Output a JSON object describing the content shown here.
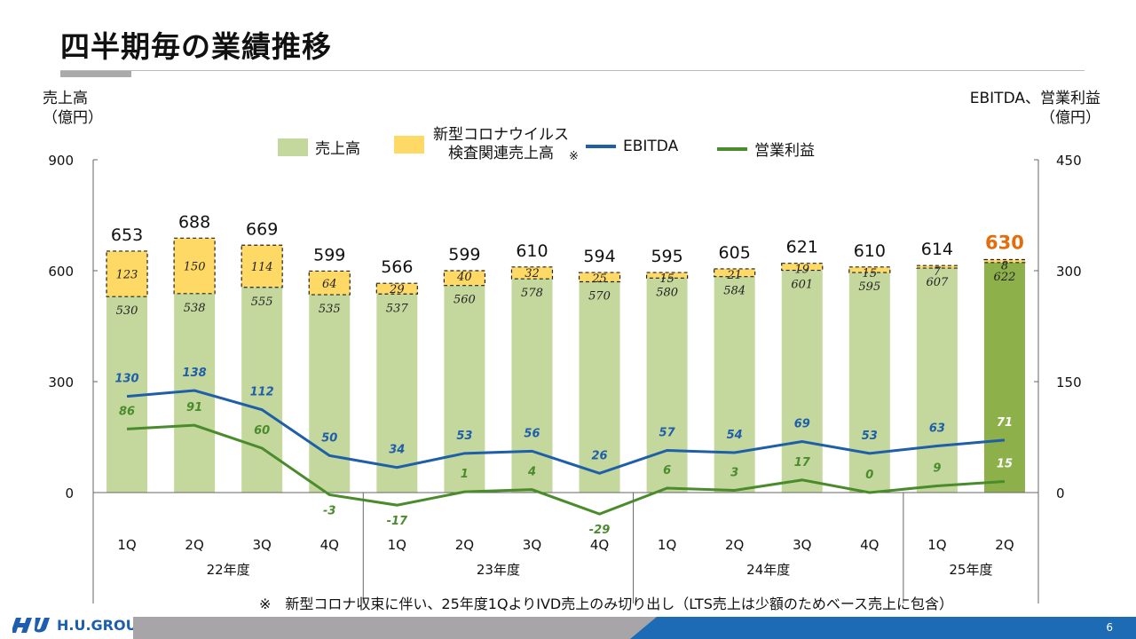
{
  "page": {
    "title": "四半期毎の業績推移",
    "note": "※　新型コロナ収束に伴い、25年度1QよりIVD売上のみ切り出し（LTS売上は少額のためベース売上に包含）",
    "page_number": "6",
    "logo_text": "H.U.GROUP"
  },
  "chart_data": {
    "type": "bar",
    "left_axis_title": [
      "売上高",
      "（億円）"
    ],
    "right_axis_title": [
      "EBITDA、営業利益",
      "（億円）"
    ],
    "left_ticks": [
      0,
      300,
      600,
      900
    ],
    "right_ticks": [
      0,
      150,
      300,
      450
    ],
    "ylim_left": [
      -300,
      900
    ],
    "ylim_right": [
      -150,
      450
    ],
    "categories": [
      "1Q",
      "2Q",
      "3Q",
      "4Q",
      "1Q",
      "2Q",
      "3Q",
      "4Q",
      "1Q",
      "2Q",
      "3Q",
      "4Q",
      "1Q",
      "2Q"
    ],
    "groups": [
      {
        "label": "22年度",
        "count": 4
      },
      {
        "label": "23年度",
        "count": 4
      },
      {
        "label": "24年度",
        "count": 4
      },
      {
        "label": "25年度",
        "count": 2
      }
    ],
    "series": [
      {
        "name": "売上高",
        "kind": "bar",
        "axis": "left",
        "color": "#c4d89e",
        "highlight_color": "#8db04a",
        "values": [
          530,
          538,
          555,
          535,
          537,
          560,
          578,
          570,
          580,
          584,
          601,
          595,
          607,
          622
        ]
      },
      {
        "name": "新型コロナウイルス検査関連売上高",
        "name_lines": [
          "新型コロナウイルス",
          "検査関連売上高"
        ],
        "name_mark": "※",
        "kind": "bar-stacked",
        "axis": "left",
        "color": "#ffd966",
        "values": [
          123,
          150,
          114,
          64,
          29,
          40,
          32,
          25,
          15,
          21,
          19,
          15,
          7,
          8
        ]
      },
      {
        "name": "EBITDA",
        "kind": "line",
        "axis": "right",
        "color": "#1f5ea8",
        "values": [
          130,
          138,
          112,
          50,
          34,
          53,
          56,
          26,
          57,
          54,
          69,
          53,
          63,
          71
        ]
      },
      {
        "name": "営業利益",
        "kind": "line",
        "axis": "right",
        "color": "#4a8b2c",
        "values": [
          86,
          91,
          60,
          -3,
          -17,
          1,
          4,
          -29,
          6,
          3,
          17,
          0,
          9,
          15
        ]
      }
    ],
    "totals": [
      653,
      688,
      669,
      599,
      566,
      599,
      610,
      594,
      595,
      605,
      621,
      610,
      614,
      630
    ],
    "highlight_total_color": "#e46c0a"
  }
}
